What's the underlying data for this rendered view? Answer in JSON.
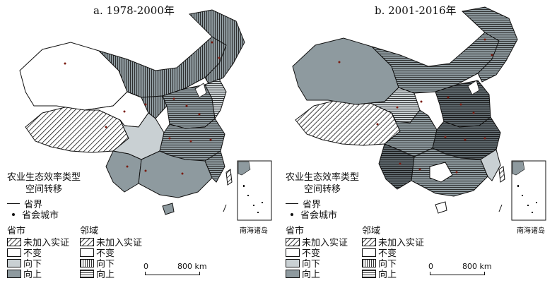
{
  "panels": [
    {
      "title": "a. 1978-2000年",
      "legend": {
        "title_line1": "农业生态效率类型",
        "title_line2": "空间转移",
        "boundary": "省界",
        "capital": "省会城市",
        "self_head": "省市",
        "neighbor_head": "邻域",
        "self_items": [
          "未加入实证",
          "不变",
          "向下",
          "向上"
        ],
        "neighbor_items": [
          "未加入实证",
          "不变",
          "向下",
          "向上"
        ]
      },
      "scale": {
        "zero": "0",
        "distance": "800 km"
      },
      "inset_label": "南海诸岛"
    },
    {
      "title": "b. 2001-2016年",
      "legend": {
        "title_line1": "农业生态效率类型",
        "title_line2": "空间转移",
        "boundary": "省界",
        "capital": "省会城市",
        "self_head": "省市",
        "neighbor_head": "邻域",
        "self_items": [
          "未加入实证",
          "不变",
          "向下",
          "向上"
        ],
        "neighbor_items": [
          "未加入实证",
          "不变",
          "向下",
          "向上"
        ]
      },
      "scale": {
        "zero": "0",
        "distance": "800 km"
      },
      "inset_label": "南海诸岛"
    }
  ],
  "colors": {
    "self_unchanged": "#ffffff",
    "self_down": "#c9d0d3",
    "self_up": "#8e9a9f",
    "map_up_dark": "#5e686d",
    "map_outline": "#111111"
  }
}
